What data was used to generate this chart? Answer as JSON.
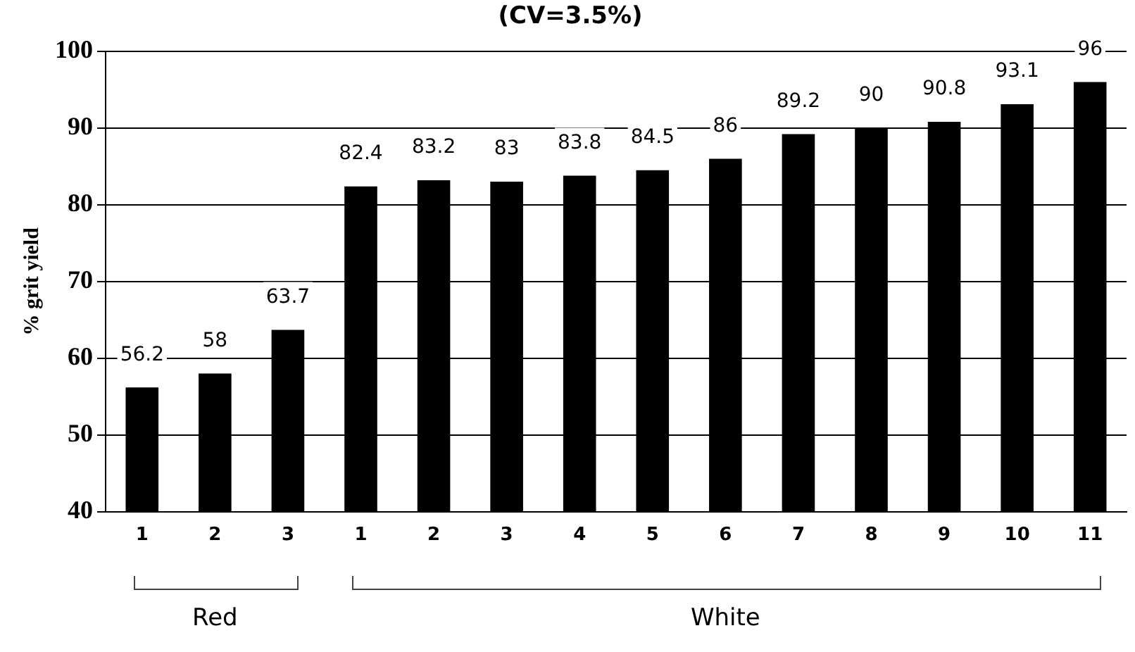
{
  "chart_data": {
    "type": "bar",
    "title": "(CV=3.5%)",
    "ylabel": "% grit yield",
    "categories": [
      "1",
      "2",
      "3",
      "1",
      "2",
      "3",
      "4",
      "5",
      "6",
      "7",
      "8",
      "9",
      "10",
      "11"
    ],
    "values": [
      56.2,
      58,
      63.7,
      82.4,
      83.2,
      83,
      83.8,
      84.5,
      86,
      89.2,
      90,
      90.8,
      93.1,
      96
    ],
    "color": "#000000",
    "ylim": [
      40,
      100
    ],
    "yticks": [
      40,
      50,
      60,
      70,
      80,
      90,
      100
    ],
    "grid": "y",
    "data_labels": true,
    "legend": false,
    "annotations": [
      "Red",
      "White"
    ]
  }
}
